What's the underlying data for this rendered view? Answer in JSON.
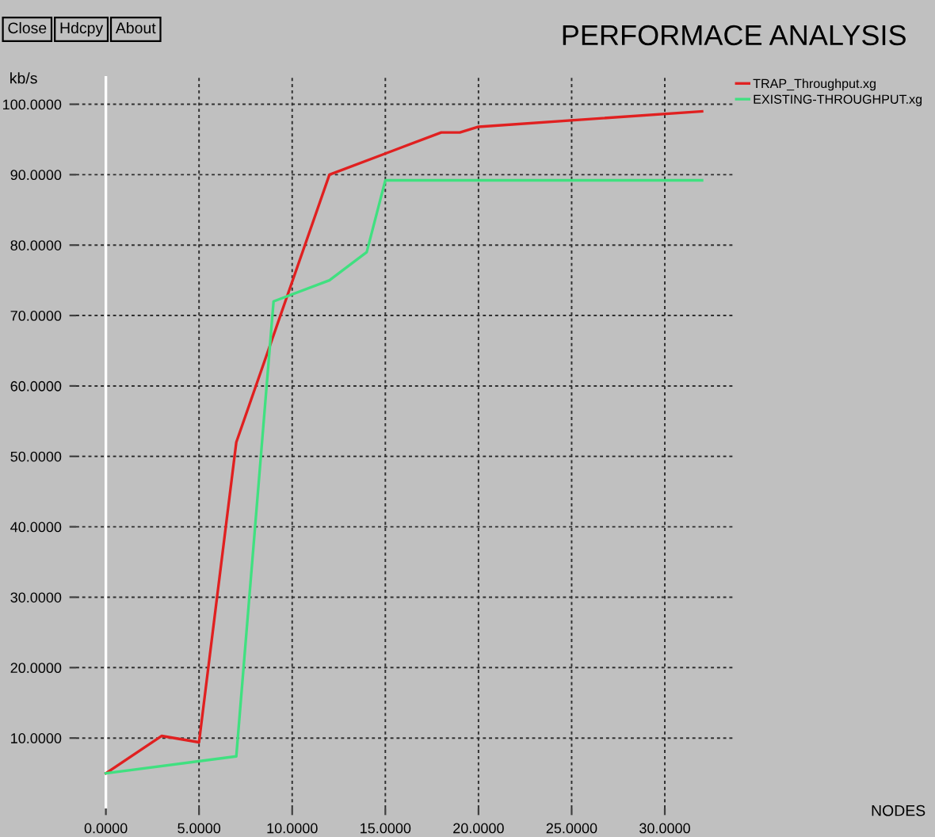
{
  "chart_data": {
    "type": "line",
    "title": "PERFORMACE ANALYSIS",
    "ylabel": "kb/s",
    "annotations": [
      "Close",
      "Hdcpy",
      "About",
      "NODES"
    ],
    "series": [
      {
        "name": "TRAP_Throughput.xg",
        "color": "#e02020",
        "x": [
          0,
          3,
          5,
          7,
          12,
          15,
          18,
          19,
          20,
          32
        ],
        "values": [
          5,
          10.3,
          9.4,
          52,
          90,
          93,
          96,
          96,
          96.8,
          99
        ]
      },
      {
        "name": "EXISTING-THROUGHPUT.xg",
        "color": "#40e080",
        "x": [
          0,
          7,
          9,
          12,
          14,
          15,
          32
        ],
        "values": [
          5,
          7.4,
          72,
          75,
          79,
          89.2,
          89.2
        ]
      }
    ],
    "xlim": [
      -1.6,
      33.7
    ],
    "ylim": [
      0,
      104
    ],
    "xticks": [
      {
        "value": 0,
        "label": "0.0000"
      },
      {
        "value": 5,
        "label": "5.0000"
      },
      {
        "value": 10,
        "label": "10.0000"
      },
      {
        "value": 15,
        "label": "15.0000"
      },
      {
        "value": 20,
        "label": "20.0000"
      },
      {
        "value": 25,
        "label": "25.0000"
      },
      {
        "value": 30,
        "label": "30.0000"
      }
    ],
    "yticks": [
      {
        "value": 10,
        "label": "10.0000"
      },
      {
        "value": 20,
        "label": "20.0000"
      },
      {
        "value": 30,
        "label": "30.0000"
      },
      {
        "value": 40,
        "label": "40.0000"
      },
      {
        "value": 50,
        "label": "50.0000"
      },
      {
        "value": 60,
        "label": "60.0000"
      },
      {
        "value": 70,
        "label": "70.0000"
      },
      {
        "value": 80,
        "label": "80.0000"
      },
      {
        "value": 90,
        "label": "90.0000"
      },
      {
        "value": 100,
        "label": "100.0000"
      }
    ],
    "ref_lines": [
      {
        "axis": "x",
        "value": 0,
        "label": null,
        "color": "#ffffff"
      }
    ],
    "grid": true,
    "legend": "right",
    "marker": "none",
    "line_style": "solid"
  }
}
